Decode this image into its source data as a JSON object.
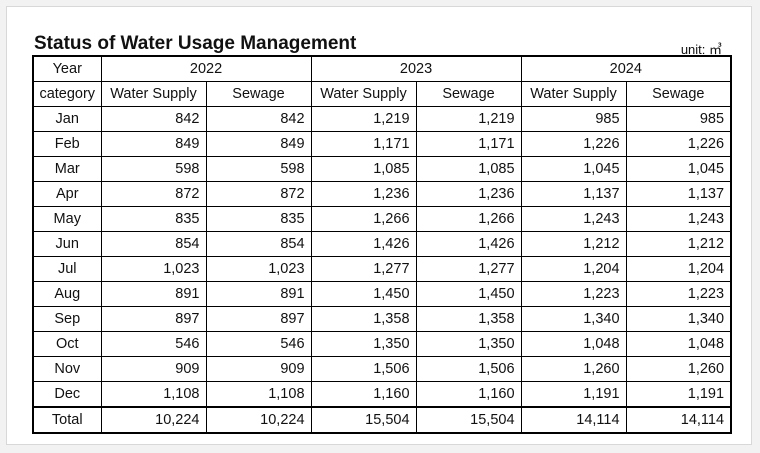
{
  "title": "Status of Water Usage Management",
  "unit": "unit: ㎥",
  "table": {
    "year_label": "Year",
    "category_label": "category",
    "years": [
      "2022",
      "2023",
      "2024"
    ],
    "sub_headers": [
      "Water Supply",
      "Sewage"
    ],
    "rows": [
      {
        "month": "Jan",
        "values": [
          "842",
          "842",
          "1,219",
          "1,219",
          "985",
          "985"
        ]
      },
      {
        "month": "Feb",
        "values": [
          "849",
          "849",
          "1,171",
          "1,171",
          "1,226",
          "1,226"
        ]
      },
      {
        "month": "Mar",
        "values": [
          "598",
          "598",
          "1,085",
          "1,085",
          "1,045",
          "1,045"
        ]
      },
      {
        "month": "Apr",
        "values": [
          "872",
          "872",
          "1,236",
          "1,236",
          "1,137",
          "1,137"
        ]
      },
      {
        "month": "May",
        "values": [
          "835",
          "835",
          "1,266",
          "1,266",
          "1,243",
          "1,243"
        ]
      },
      {
        "month": "Jun",
        "values": [
          "854",
          "854",
          "1,426",
          "1,426",
          "1,212",
          "1,212"
        ]
      },
      {
        "month": "Jul",
        "values": [
          "1,023",
          "1,023",
          "1,277",
          "1,277",
          "1,204",
          "1,204"
        ]
      },
      {
        "month": "Aug",
        "values": [
          "891",
          "891",
          "1,450",
          "1,450",
          "1,223",
          "1,223"
        ]
      },
      {
        "month": "Sep",
        "values": [
          "897",
          "897",
          "1,358",
          "1,358",
          "1,340",
          "1,340"
        ]
      },
      {
        "month": "Oct",
        "values": [
          "546",
          "546",
          "1,350",
          "1,350",
          "1,048",
          "1,048"
        ]
      },
      {
        "month": "Nov",
        "values": [
          "909",
          "909",
          "1,506",
          "1,506",
          "1,260",
          "1,260"
        ]
      },
      {
        "month": "Dec",
        "values": [
          "1,108",
          "1,108",
          "1,160",
          "1,160",
          "1,191",
          "1,191"
        ]
      }
    ],
    "total": {
      "label": "Total",
      "values": [
        "10,224",
        "10,224",
        "15,504",
        "15,504",
        "14,114",
        "14,114"
      ]
    }
  }
}
